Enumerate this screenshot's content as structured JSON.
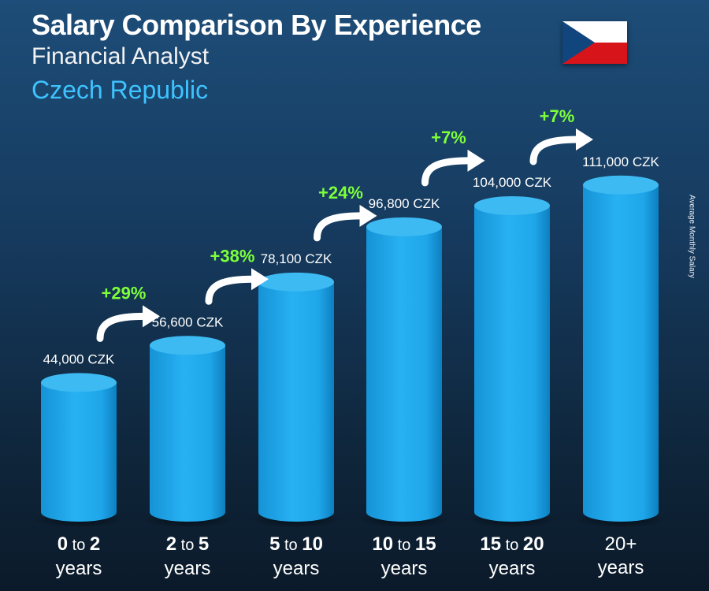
{
  "header": {
    "title": "Salary Comparison By Experience",
    "subtitle": "Financial Analyst",
    "country": "Czech Republic"
  },
  "flag": {
    "name": "czech-flag",
    "colors": [
      "#ffffff",
      "#d7141a",
      "#11457e"
    ]
  },
  "colors": {
    "bar": "#1ea6e9",
    "bar_top": "#3dbaf2",
    "percent": "#7dff3a",
    "arrow": "#ffffff"
  },
  "chart_data": {
    "type": "bar",
    "categories": [
      {
        "from": "0",
        "to": "2",
        "unit": "years"
      },
      {
        "from": "2",
        "to": "5",
        "unit": "years"
      },
      {
        "from": "5",
        "to": "10",
        "unit": "years"
      },
      {
        "from": "10",
        "to": "15",
        "unit": "years"
      },
      {
        "from": "15",
        "to": "20",
        "unit": "years"
      },
      {
        "from": "20+",
        "to": "",
        "unit": "years"
      }
    ],
    "connector": "to",
    "values": [
      44000,
      56600,
      78100,
      96800,
      104000,
      111000
    ],
    "value_labels": [
      "44,000 CZK",
      "56,600 CZK",
      "78,100 CZK",
      "96,800 CZK",
      "104,000 CZK",
      "111,000 CZK"
    ],
    "increases": [
      "+29%",
      "+38%",
      "+24%",
      "+7%",
      "+7%"
    ],
    "ylabel": "Average Monthly Salary",
    "ylim": [
      0,
      135000
    ]
  }
}
